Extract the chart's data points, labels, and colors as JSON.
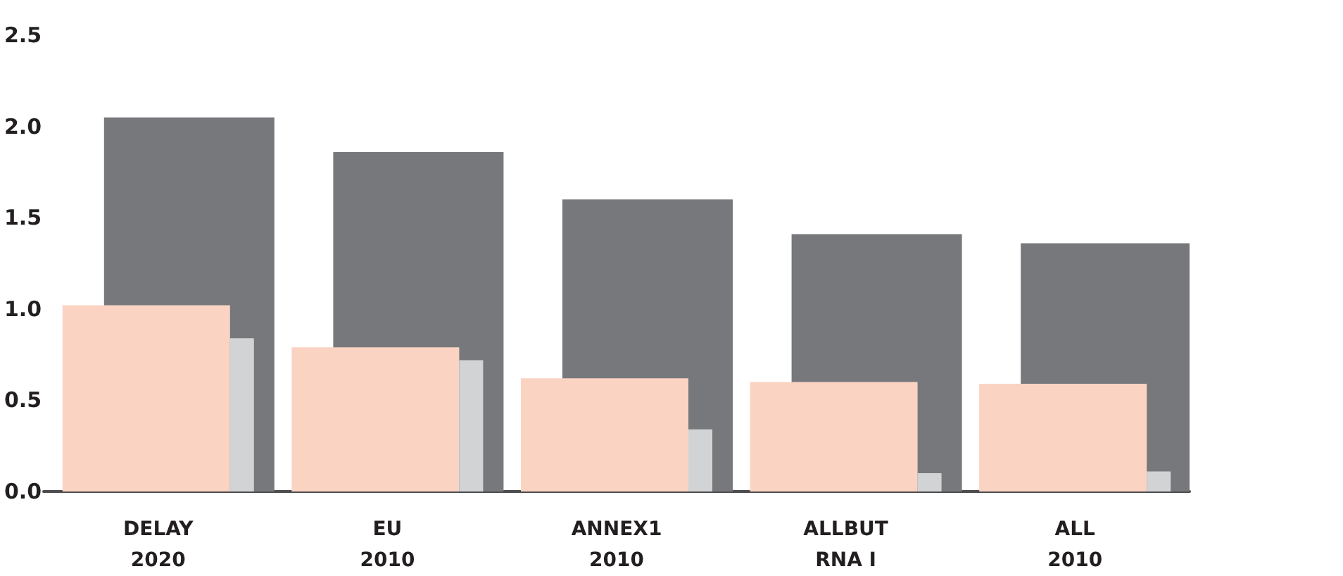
{
  "chart_data": {
    "type": "bar",
    "categories": [
      "DELAY\n2020",
      "EU\n2010",
      "ANNEX1\n2010",
      "ALLBUT\nRNA I",
      "ALL\n2010"
    ],
    "series": [
      {
        "color": "#77787b",
        "values": [
          2.05,
          1.86,
          1.6,
          1.41,
          1.36
        ]
      },
      {
        "color": "#fbd3c3",
        "values": [
          1.02,
          0.79,
          0.62,
          0.6,
          0.59
        ]
      },
      {
        "color": "#d1d3d4",
        "values": [
          0.84,
          0.72,
          0.34,
          0.1,
          0.11
        ]
      }
    ],
    "ylim": [
      0,
      2.5
    ],
    "yticks": [
      {
        "value": 0,
        "label": "0.0"
      },
      {
        "value": 0.5,
        "label": "0.5"
      },
      {
        "value": 1,
        "label": "1.0"
      },
      {
        "value": 1.5,
        "label": "1.5"
      },
      {
        "value": 2,
        "label": "2.0"
      },
      {
        "value": 2.5,
        "label": "2.5"
      }
    ],
    "grid": false
  }
}
